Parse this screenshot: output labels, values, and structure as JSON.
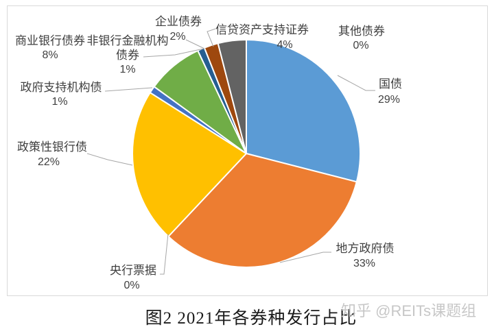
{
  "chart_data": {
    "type": "pie",
    "title": "图2  2021年各券种发行占比",
    "start_angle_deg": 0,
    "direction": "clockwise",
    "legend": "none",
    "label_style": "outside-with-percent",
    "label_text_color": "#3f3f3f",
    "leader_line_color": "#a6a6a6",
    "slices": [
      {
        "label": "国债",
        "value_pct": 29,
        "pct_label": "29%",
        "color": "#5B9BD5"
      },
      {
        "label": "地方政府债",
        "value_pct": 33,
        "pct_label": "33%",
        "color": "#ED7D31"
      },
      {
        "label": "央行票据",
        "value_pct": 0,
        "pct_label": "0%",
        "color": "#A5A5A5"
      },
      {
        "label": "政策性银行债",
        "value_pct": 22,
        "pct_label": "22%",
        "color": "#FFC000"
      },
      {
        "label": "政府支持机构债",
        "value_pct": 1,
        "pct_label": "1%",
        "color": "#4472C4"
      },
      {
        "label": "商业银行债券",
        "value_pct": 8,
        "pct_label": "8%",
        "color": "#70AD47"
      },
      {
        "label": "非银行金融机构债券",
        "value_pct": 1,
        "pct_label": "1%",
        "color": "#255E91"
      },
      {
        "label": "企业债券",
        "value_pct": 2,
        "pct_label": "2%",
        "color": "#9E480E"
      },
      {
        "label": "信贷资产支持证券",
        "value_pct": 4,
        "pct_label": "4%",
        "color": "#636363"
      },
      {
        "label": "其他债券",
        "value_pct": 0,
        "pct_label": "0%",
        "color": "#997300"
      }
    ]
  },
  "caption": {
    "text": "图2  2021年各券种发行占比"
  },
  "watermark": {
    "text": "知乎 @REITs课题组"
  }
}
